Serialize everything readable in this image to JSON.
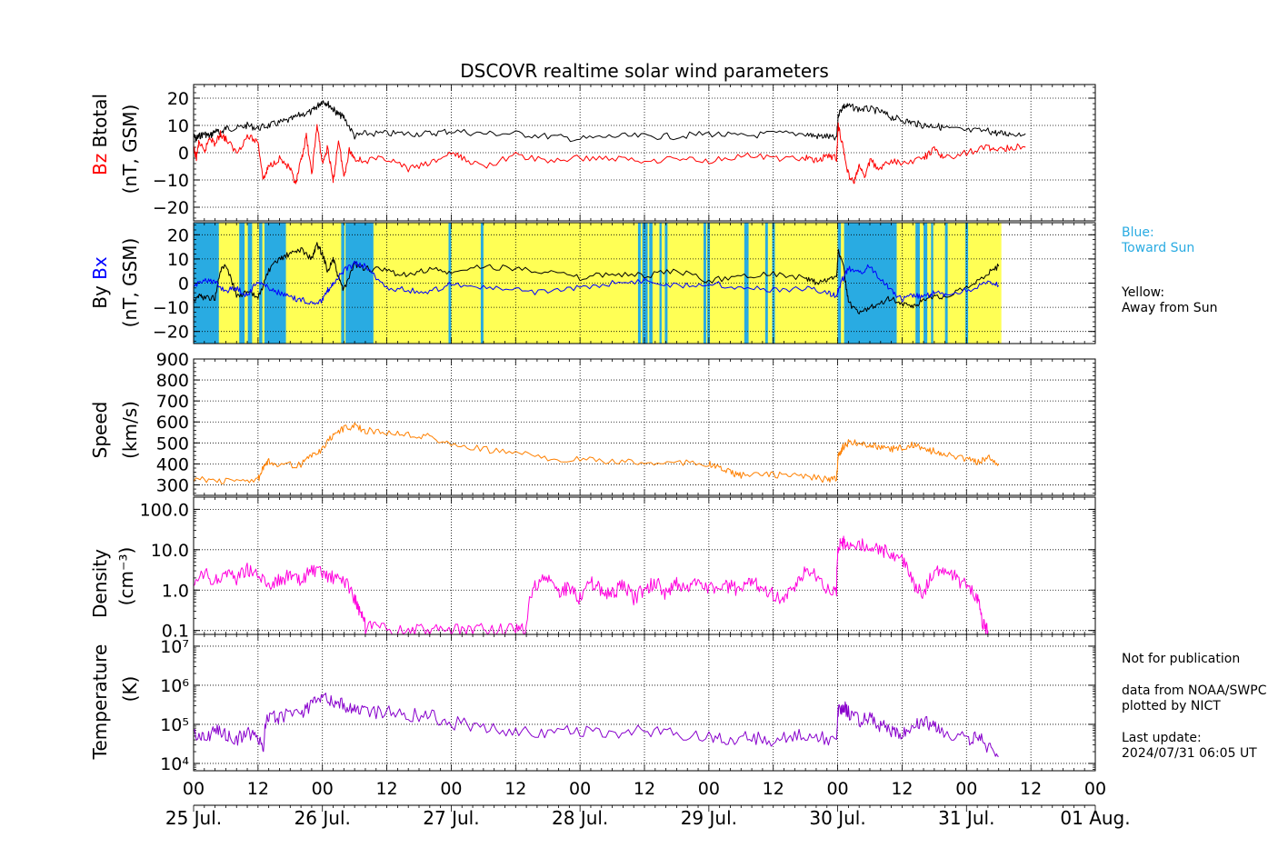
{
  "title": "DSCOVR realtime solar wind parameters",
  "colors": {
    "btotal": "#000000",
    "bz": "#ff0000",
    "bx": "#0000ff",
    "by": "#000000",
    "speed": "#ff8000",
    "density": "#ff00dd",
    "temperature": "#8800cc",
    "toward": "#29abe2",
    "away": "#ffff55"
  },
  "side": {
    "blue_label": "Blue:",
    "blue_desc": "Toward Sun",
    "yellow_label": "Yellow:",
    "yellow_desc": "Away from Sun",
    "note1": "Not for publication",
    "note2": "data from NOAA/SWPC",
    "note3": "plotted by NICT",
    "note4": "Last update:",
    "note5": "2024/07/31 06:05 UT"
  },
  "chart_data": [
    {
      "type": "line",
      "name": "magnetic field magnitude and Bz",
      "ylabel_parts": [
        "Bz",
        "Btotal"
      ],
      "ylabel_units": "(nT, GSM)",
      "ylim": [
        -25,
        25
      ],
      "yticks": [
        -20,
        -10,
        0,
        10,
        20
      ],
      "ytick_labels": [
        "−20",
        "−10",
        "0",
        "10",
        "20"
      ],
      "grid": true,
      "series": [
        {
          "name": "Btotal",
          "color": "#000000",
          "x": [
            0,
            0.5,
            1,
            2,
            3,
            4,
            5,
            6,
            8,
            10,
            12,
            14,
            16,
            18,
            20,
            22,
            23,
            24,
            25,
            26,
            27,
            28,
            30,
            32,
            36,
            40,
            44,
            48,
            54,
            60,
            66,
            72,
            78,
            84,
            90,
            96,
            102,
            108,
            114,
            116,
            118,
            119.8,
            120.1,
            121,
            122,
            124,
            126,
            128,
            130,
            132,
            134,
            136,
            138,
            140,
            144,
            148,
            150,
            152,
            155
          ],
          "y": [
            6,
            5,
            6,
            7,
            6,
            8,
            7,
            9,
            9,
            10,
            9,
            10,
            11,
            12,
            14,
            15,
            17,
            19,
            18,
            16,
            14,
            13,
            6,
            7,
            7,
            7,
            7,
            8,
            7,
            7,
            6,
            5,
            6,
            6,
            6,
            7,
            6,
            7,
            7,
            6,
            6,
            5,
            14,
            17,
            17,
            16,
            16,
            15,
            13,
            12,
            11,
            10,
            10,
            9,
            8,
            8,
            7,
            7,
            7
          ]
        },
        {
          "name": "Bz",
          "color": "#ff0000",
          "x": [
            0,
            0.5,
            1,
            2,
            3,
            4,
            5,
            6,
            8,
            10,
            12,
            13,
            14,
            16,
            18,
            19,
            20,
            21,
            22,
            23,
            24,
            25,
            26,
            27,
            28,
            29,
            30,
            32,
            36,
            40,
            44,
            48,
            50,
            54,
            60,
            66,
            72,
            78,
            84,
            90,
            96,
            102,
            108,
            114,
            116,
            118,
            119.8,
            120.1,
            121,
            122,
            123,
            124,
            125,
            126,
            128,
            130,
            132,
            136,
            138,
            140,
            144,
            148,
            150,
            152,
            155
          ],
          "y": [
            2,
            -2,
            4,
            0,
            6,
            3,
            7,
            5,
            0,
            6,
            4,
            -10,
            -5,
            -2,
            -6,
            -12,
            -3,
            6,
            -8,
            10,
            -4,
            2,
            -11,
            5,
            -9,
            1,
            -2,
            -3,
            -2,
            -6,
            -4,
            0,
            -2,
            -5,
            -1,
            -3,
            -2,
            -2,
            -3,
            -2,
            -3,
            -1,
            -2,
            -2,
            -3,
            -1,
            -2,
            10,
            2,
            -8,
            -11,
            -5,
            -9,
            -3,
            -6,
            -3,
            -4,
            -2,
            1,
            -2,
            0,
            2,
            1,
            2,
            2
          ]
        }
      ]
    },
    {
      "type": "line",
      "name": "Bx and By with sector polarity",
      "ylabel_parts": [
        "By",
        "Bx"
      ],
      "ylabel_units": "(nT, GSM)",
      "ylim": [
        -25,
        25
      ],
      "yticks": [
        -20,
        -10,
        0,
        10,
        20
      ],
      "ytick_labels": [
        "−20",
        "−10",
        "0",
        "10",
        "20"
      ],
      "grid": true,
      "sectors_toward_sun": [
        [
          0,
          4.7
        ],
        [
          8.5,
          9.5
        ],
        [
          10.1,
          10.9
        ],
        [
          12.2,
          12.8
        ],
        [
          13.2,
          17.2
        ],
        [
          27.5,
          28.1
        ],
        [
          28.3,
          33.5
        ],
        [
          47.5,
          48.0
        ],
        [
          53.5,
          54.0
        ],
        [
          82.8,
          83.3
        ],
        [
          83.6,
          84.6
        ],
        [
          84.9,
          85.5
        ],
        [
          86.8,
          87.2
        ],
        [
          87.8,
          88.3
        ],
        [
          95.0,
          95.5
        ],
        [
          95.7,
          96.2
        ],
        [
          102.6,
          103.4
        ],
        [
          106.5,
          107.0
        ],
        [
          107.8,
          108.3
        ],
        [
          120.0,
          120.6
        ],
        [
          121.2,
          131.0
        ],
        [
          134.5,
          135.3
        ],
        [
          136.0,
          136.7
        ],
        [
          137.4,
          137.8
        ],
        [
          140.0,
          140.5
        ],
        [
          143.8,
          144.3
        ]
      ],
      "sector_end_hour": 150.5,
      "series": [
        {
          "name": "By",
          "color": "#000000",
          "x": [
            0,
            1,
            2,
            4,
            5,
            6,
            8,
            10,
            12,
            14,
            16,
            18,
            20,
            22,
            23,
            24,
            25,
            26,
            27,
            28,
            30,
            32,
            36,
            40,
            44,
            48,
            54,
            60,
            66,
            72,
            78,
            84,
            90,
            96,
            102,
            108,
            114,
            116,
            118,
            119.8,
            120.1,
            121,
            122,
            124,
            126,
            128,
            130,
            132,
            134,
            136,
            138,
            140,
            144,
            148,
            150
          ],
          "y": [
            -7,
            -5,
            -6,
            -6,
            5,
            8,
            -5,
            -4,
            -6,
            5,
            10,
            12,
            14,
            10,
            16,
            12,
            5,
            10,
            2,
            -3,
            8,
            6,
            5,
            3,
            6,
            4,
            7,
            6,
            5,
            2,
            4,
            3,
            5,
            1,
            3,
            4,
            2,
            0,
            1,
            3,
            13,
            8,
            -8,
            -13,
            -10,
            -8,
            -6,
            -9,
            -10,
            -7,
            -5,
            -6,
            -2,
            4,
            7
          ]
        },
        {
          "name": "Bx",
          "color": "#0000ff",
          "x": [
            0,
            2,
            4,
            6,
            8,
            10,
            12,
            14,
            16,
            18,
            20,
            22,
            24,
            25,
            26,
            28,
            30,
            32,
            36,
            40,
            44,
            48,
            54,
            60,
            66,
            72,
            78,
            84,
            90,
            96,
            102,
            108,
            114,
            118,
            119.8,
            120.1,
            121,
            122,
            124,
            126,
            128,
            130,
            132,
            134,
            136,
            138,
            140,
            144,
            148,
            150
          ],
          "y": [
            -2,
            2,
            0,
            -3,
            -2,
            -5,
            1,
            -2,
            -4,
            -6,
            -7,
            -8,
            -7,
            -3,
            0,
            5,
            8,
            7,
            -2,
            -3,
            -4,
            0,
            -2,
            -3,
            -4,
            -2,
            0,
            1,
            -1,
            0,
            -2,
            -3,
            -2,
            -4,
            -5,
            -3,
            2,
            6,
            4,
            7,
            2,
            -3,
            -7,
            -5,
            -6,
            -4,
            -5,
            -3,
            0,
            -1
          ]
        }
      ]
    },
    {
      "type": "line",
      "name": "solar wind speed",
      "ylabel": "Speed",
      "ylabel_units": "(km/s)",
      "ylim": [
        250,
        900
      ],
      "yticks": [
        300,
        400,
        500,
        600,
        700,
        800,
        900
      ],
      "ytick_labels": [
        "300",
        "400",
        "500",
        "600",
        "700",
        "800",
        "900"
      ],
      "grid": true,
      "series": [
        {
          "name": "Speed",
          "color": "#ff8000",
          "x": [
            0,
            4,
            8,
            12,
            13,
            14,
            16,
            20,
            22,
            24,
            26,
            28,
            30,
            32,
            36,
            40,
            44,
            48,
            54,
            60,
            66,
            72,
            78,
            84,
            90,
            96,
            98,
            100,
            102,
            106,
            110,
            114,
            118,
            119.8,
            120.1,
            121,
            122,
            124,
            126,
            128,
            130,
            132,
            134,
            136,
            138,
            140,
            144,
            146,
            148,
            150
          ],
          "y": [
            330,
            320,
            318,
            325,
            380,
            410,
            400,
            395,
            440,
            470,
            540,
            570,
            580,
            560,
            550,
            540,
            530,
            490,
            470,
            450,
            430,
            420,
            410,
            405,
            410,
            400,
            380,
            360,
            345,
            350,
            345,
            340,
            325,
            330,
            440,
            480,
            500,
            500,
            490,
            480,
            470,
            480,
            490,
            470,
            460,
            450,
            420,
            410,
            430,
            400
          ]
        }
      ]
    },
    {
      "type": "line",
      "name": "proton density",
      "ylabel": "Density",
      "ylabel_units": "(cm⁻³)",
      "yscale": "log",
      "ylim": [
        0.08,
        200
      ],
      "yticks": [
        0.1,
        1,
        10,
        100
      ],
      "ytick_labels": [
        "0.1",
        "1.0",
        "10.0",
        "100.0"
      ],
      "grid": true,
      "series": [
        {
          "name": "Density",
          "color": "#ff00dd",
          "x": [
            0,
            2,
            4,
            6,
            8,
            10,
            12,
            14,
            16,
            18,
            20,
            22,
            24,
            26,
            28,
            30,
            31,
            32,
            35,
            40,
            44,
            48,
            52,
            56,
            60,
            62,
            64,
            66,
            68,
            70,
            72,
            74,
            76,
            78,
            80,
            82,
            84,
            86,
            88,
            90,
            92,
            94,
            96,
            98,
            100,
            102,
            104,
            106,
            108,
            110,
            112,
            114,
            116,
            118,
            119.8,
            120.1,
            121,
            122,
            124,
            126,
            128,
            130,
            132,
            134,
            136,
            138,
            140,
            142,
            144,
            146,
            147,
            148
          ],
          "y": [
            1.0,
            2.5,
            1.5,
            3.0,
            2.0,
            3.5,
            2.2,
            1.4,
            1.8,
            2.2,
            1.5,
            3.0,
            2.5,
            2.0,
            1.8,
            0.6,
            0.25,
            0.12,
            0.1,
            0.1,
            0.1,
            0.1,
            0.1,
            0.1,
            0.1,
            0.1,
            1.5,
            2.0,
            0.8,
            1.2,
            0.6,
            1.5,
            1.0,
            0.8,
            1.3,
            0.6,
            1.0,
            1.5,
            0.8,
            1.4,
            1.0,
            1.8,
            1.2,
            1.0,
            1.3,
            0.8,
            1.8,
            1.2,
            0.8,
            0.6,
            1.0,
            3.0,
            2.5,
            1.0,
            0.8,
            12.0,
            15.0,
            14.0,
            13.0,
            12.0,
            10.0,
            8.0,
            6.0,
            1.5,
            0.8,
            2.5,
            3.5,
            2.0,
            1.2,
            0.6,
            0.15,
            0.1
          ]
        }
      ]
    },
    {
      "type": "line",
      "name": "proton temperature",
      "ylabel": "Temperature",
      "ylabel_units": "(K)",
      "yscale": "log",
      "ylim": [
        6500,
        20000000
      ],
      "yticks": [
        10000,
        100000,
        1000000,
        10000000
      ],
      "ytick_labels": [
        "10⁴",
        "10⁵",
        "10⁶",
        "10⁷"
      ],
      "grid": true,
      "series": [
        {
          "name": "Temperature",
          "color": "#8800cc",
          "x": [
            0,
            2,
            4,
            6,
            8,
            10,
            12,
            13,
            14,
            16,
            20,
            22,
            24,
            26,
            28,
            30,
            32,
            36,
            40,
            44,
            48,
            54,
            60,
            66,
            72,
            78,
            84,
            90,
            96,
            100,
            104,
            108,
            112,
            116,
            119.8,
            120.1,
            121,
            122,
            124,
            126,
            128,
            130,
            132,
            134,
            136,
            138,
            140,
            144,
            146,
            148,
            150
          ],
          "y": [
            60000,
            45000,
            70000,
            50000,
            40000,
            60000,
            35000,
            30000,
            180000,
            150000,
            200000,
            300000,
            500000,
            400000,
            300000,
            250000,
            220000,
            200000,
            180000,
            160000,
            110000,
            80000,
            70000,
            60000,
            65000,
            60000,
            70000,
            60000,
            55000,
            40000,
            45000,
            40000,
            50000,
            50000,
            40000,
            200000,
            300000,
            200000,
            120000,
            160000,
            90000,
            70000,
            60000,
            90000,
            120000,
            80000,
            60000,
            40000,
            50000,
            25000,
            15000
          ]
        }
      ]
    }
  ],
  "xaxis": {
    "hour_labels": [
      "00",
      "12",
      "00",
      "12",
      "00",
      "12",
      "00",
      "12",
      "00",
      "12",
      "00",
      "12",
      "00",
      "12",
      "00"
    ],
    "date_labels": [
      "25 Jul.",
      "26 Jul.",
      "27 Jul.",
      "28 Jul.",
      "29 Jul.",
      "30 Jul.",
      "31 Jul.",
      "01 Aug."
    ],
    "range_hours": [
      0,
      168
    ]
  }
}
